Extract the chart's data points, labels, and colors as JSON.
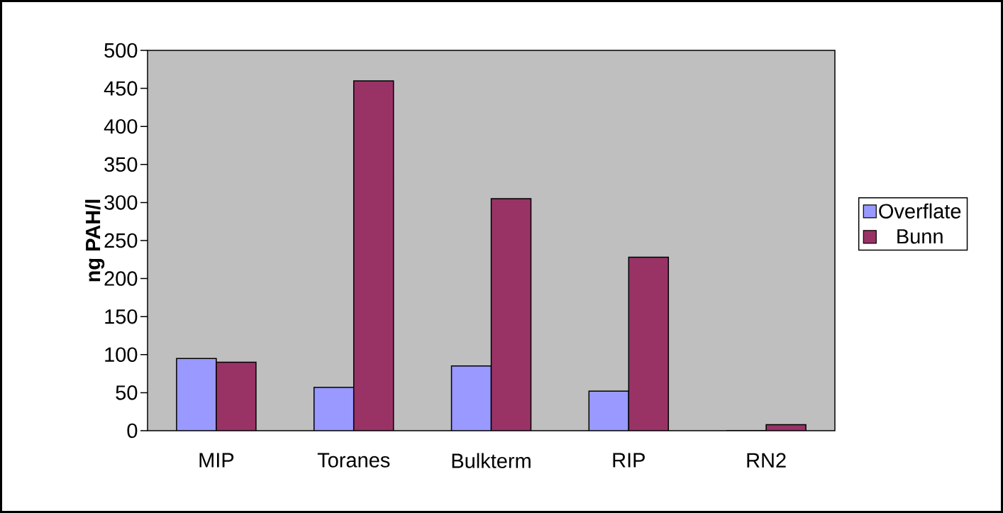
{
  "chart_data": {
    "type": "bar",
    "ylabel": "ng PAH/l",
    "categories": [
      "MIP",
      "Toranes",
      "Bulkterm",
      "RIP",
      "RN2"
    ],
    "series": [
      {
        "name": "Overflate",
        "color": "#9999ff",
        "values": [
          95,
          57,
          85,
          52,
          0
        ]
      },
      {
        "name": "Bunn",
        "color": "#993366",
        "values": [
          90,
          460,
          305,
          228,
          8
        ]
      }
    ],
    "ylim": [
      0,
      500
    ],
    "yticks": [
      0,
      50,
      100,
      150,
      200,
      250,
      300,
      350,
      400,
      450,
      500
    ],
    "legend": "right"
  }
}
